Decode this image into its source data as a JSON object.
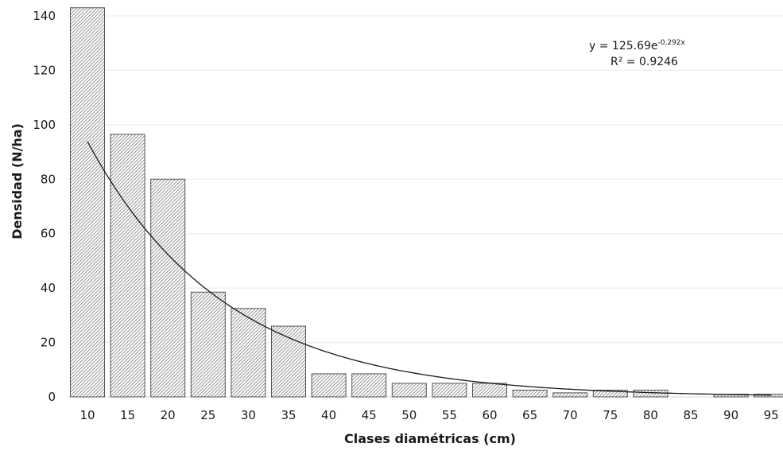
{
  "chart_data": {
    "type": "bar",
    "xlabel": "Clases diamétricas (cm)",
    "ylabel": "Densidad (N/ha)",
    "ylim": [
      0,
      140
    ],
    "yticks": [
      "0",
      "20",
      "40",
      "60",
      "80",
      "100",
      "120",
      "140"
    ],
    "categories": [
      "10",
      "15",
      "20",
      "25",
      "30",
      "35",
      "40",
      "45",
      "50",
      "55",
      "60",
      "65",
      "70",
      "75",
      "80",
      "85",
      "90",
      "95"
    ],
    "values": [
      143,
      96.5,
      80,
      38.5,
      32.5,
      26,
      8.5,
      8.5,
      5,
      5,
      5,
      2.5,
      1.5,
      2.5,
      2.5,
      0,
      1,
      1
    ],
    "grid": true,
    "trendline": {
      "type": "exponential",
      "a": 125.69,
      "b": -0.292,
      "equation_prefix": "y = 125.69e",
      "equation_exponent": "-0.292x",
      "r2_label": "R² = 0.9246"
    }
  }
}
